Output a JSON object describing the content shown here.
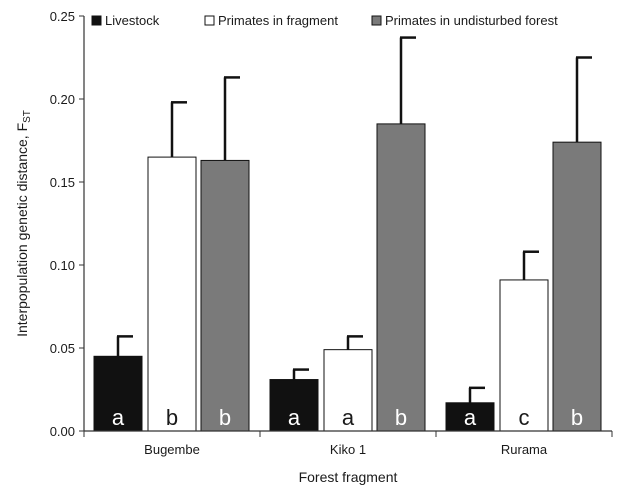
{
  "chart_data": {
    "type": "bar",
    "title": "",
    "xlabel": "Forest fragment",
    "ylabel": "Interpopulation genetic distance, F",
    "ylabel_subscript": "ST",
    "ylim": [
      0,
      0.25
    ],
    "yticks": [
      "0.00",
      "0.05",
      "0.10",
      "0.15",
      "0.20",
      "0.25"
    ],
    "categories": [
      "Bugembe",
      "Kiko 1",
      "Rurama"
    ],
    "legend_position": "top",
    "grid": false,
    "error_bars": "upper",
    "series": [
      {
        "name": "Livestock",
        "color": "#111111",
        "values": [
          0.045,
          0.031,
          0.017
        ],
        "errors": [
          0.012,
          0.006,
          0.009
        ],
        "letters": [
          "a",
          "a",
          "a"
        ]
      },
      {
        "name": "Primates in fragment",
        "color": "#ffffff",
        "values": [
          0.165,
          0.049,
          0.091
        ],
        "errors": [
          0.033,
          0.008,
          0.017
        ],
        "letters": [
          "b",
          "a",
          "c"
        ]
      },
      {
        "name": "Primates in undisturbed forest",
        "color": "#7a7a7a",
        "values": [
          0.163,
          0.185,
          0.174
        ],
        "errors": [
          0.05,
          0.052,
          0.051
        ],
        "letters": [
          "b",
          "b",
          "b"
        ]
      }
    ]
  }
}
